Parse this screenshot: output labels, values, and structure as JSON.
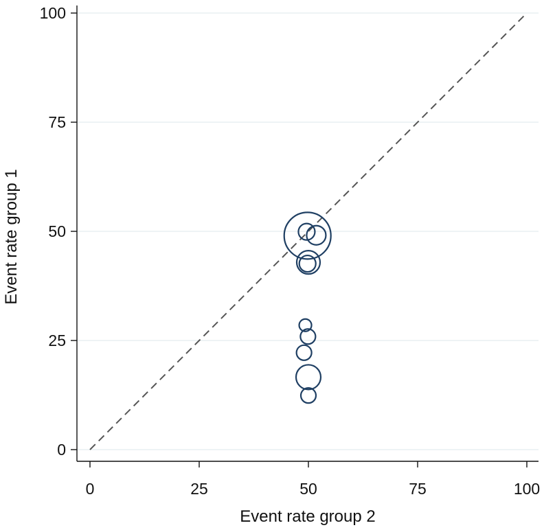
{
  "chart_data": {
    "type": "scatter",
    "title": "",
    "xlabel": "Event rate group 2",
    "ylabel": "Event rate group 1",
    "xlim": [
      0,
      100
    ],
    "ylim": [
      0,
      100
    ],
    "x_ticks": [
      0,
      25,
      50,
      75,
      100
    ],
    "y_ticks": [
      0,
      25,
      50,
      75,
      100
    ],
    "x_tick_labels": [
      "0",
      "25",
      "50",
      "75",
      "100"
    ],
    "y_tick_labels": [
      "0",
      "25",
      "50",
      "75",
      "100"
    ],
    "grid": "horizontal",
    "reference_line": {
      "style": "dashed",
      "from": [
        0,
        0
      ],
      "to": [
        100,
        100
      ]
    },
    "marker_color": "#1f3f63",
    "points": [
      {
        "x": 49.8,
        "y": 49.0,
        "size": 34
      },
      {
        "x": 49.6,
        "y": 49.9,
        "size": 12
      },
      {
        "x": 51.8,
        "y": 49.1,
        "size": 14
      },
      {
        "x": 50.0,
        "y": 42.9,
        "size": 17
      },
      {
        "x": 49.8,
        "y": 42.6,
        "size": 12
      },
      {
        "x": 49.3,
        "y": 28.5,
        "size": 9
      },
      {
        "x": 49.9,
        "y": 25.9,
        "size": 11
      },
      {
        "x": 49.0,
        "y": 22.2,
        "size": 11
      },
      {
        "x": 50.0,
        "y": 16.6,
        "size": 18
      },
      {
        "x": 50.0,
        "y": 12.4,
        "size": 11
      }
    ]
  }
}
